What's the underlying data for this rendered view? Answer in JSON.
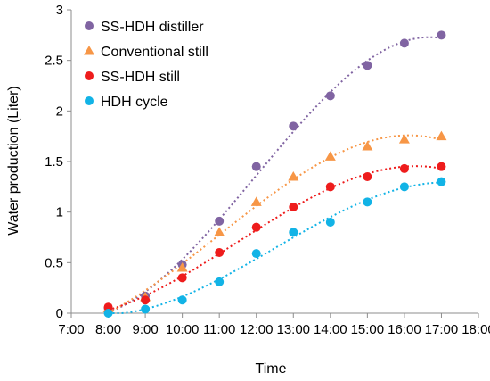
{
  "chart_data": {
    "type": "scatter",
    "title": "",
    "xlabel": "Time",
    "ylabel": "Water production (Liter)",
    "x_ticks": [
      "7:00",
      "8:00",
      "9:00",
      "10:00",
      "11:00",
      "12:00",
      "13:00",
      "14:00",
      "15:00",
      "16:00",
      "17:00",
      "18:00"
    ],
    "xlim": [
      "7:00",
      "18:00"
    ],
    "y_ticks": [
      "0",
      "0.5",
      "1",
      "1.5",
      "2",
      "2.5",
      "3"
    ],
    "ylim": [
      0,
      3
    ],
    "grid": false,
    "legend_position": "top-left",
    "trendline": "dotted polynomial fit per series",
    "x": [
      "8:00",
      "9:00",
      "10:00",
      "11:00",
      "12:00",
      "13:00",
      "14:00",
      "15:00",
      "16:00",
      "17:00"
    ],
    "series": [
      {
        "name": "SS-HDH distiller",
        "marker": "circle",
        "color": "#8064A2",
        "values": [
          0.05,
          0.17,
          0.48,
          0.91,
          1.45,
          1.85,
          2.15,
          2.45,
          2.67,
          2.75
        ]
      },
      {
        "name": "Conventional still",
        "marker": "triangle",
        "color": "#F79646",
        "values": [
          0.05,
          0.16,
          0.45,
          0.8,
          1.1,
          1.35,
          1.55,
          1.65,
          1.72,
          1.75
        ]
      },
      {
        "name": "SS-HDH still",
        "marker": "circle",
        "color": "#EE1C1C",
        "values": [
          0.06,
          0.13,
          0.35,
          0.6,
          0.85,
          1.05,
          1.25,
          1.35,
          1.43,
          1.45
        ]
      },
      {
        "name": "HDH cycle",
        "marker": "circle",
        "color": "#12B3E6",
        "values": [
          0.0,
          0.04,
          0.13,
          0.31,
          0.59,
          0.8,
          0.9,
          1.1,
          1.25,
          1.3
        ]
      }
    ]
  }
}
